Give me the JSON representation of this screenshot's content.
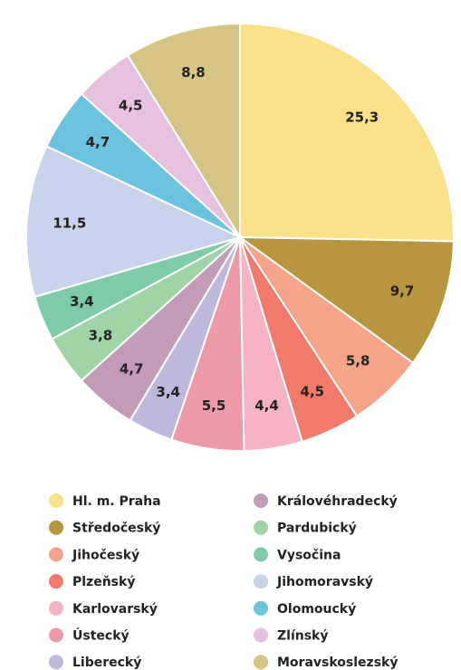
{
  "chart_data": {
    "type": "pie",
    "categories": [
      "Hl. m. Praha",
      "Středočeský",
      "Jihočeský",
      "Plzeňský",
      "Karlovarský",
      "Ústecký",
      "Liberecký",
      "Královéhradecký",
      "Pardubický",
      "Vysočina",
      "Jihomoravský",
      "Olomoucký",
      "Zlínský",
      "Moravskoslezský"
    ],
    "values": [
      25.3,
      9.7,
      5.8,
      4.5,
      4.4,
      5.5,
      3.4,
      4.7,
      3.8,
      3.4,
      11.5,
      4.7,
      4.5,
      8.8
    ],
    "value_labels": [
      "25,3",
      "9,7",
      "5,8",
      "4,5",
      "4,4",
      "5,5",
      "3,4",
      "4,7",
      "3,8",
      "3,4",
      "11,5",
      "4,7",
      "4,5",
      "8,8"
    ],
    "colors": [
      "#fbe08a",
      "#b8963f",
      "#f5a48a",
      "#f27a6a",
      "#f5b3c3",
      "#ec99a8",
      "#bdb8dc",
      "#c39bb9",
      "#9fd4a6",
      "#7fcaa9",
      "#c8d3ec",
      "#6bc3e0",
      "#e9c1e0",
      "#d5c483"
    ]
  }
}
